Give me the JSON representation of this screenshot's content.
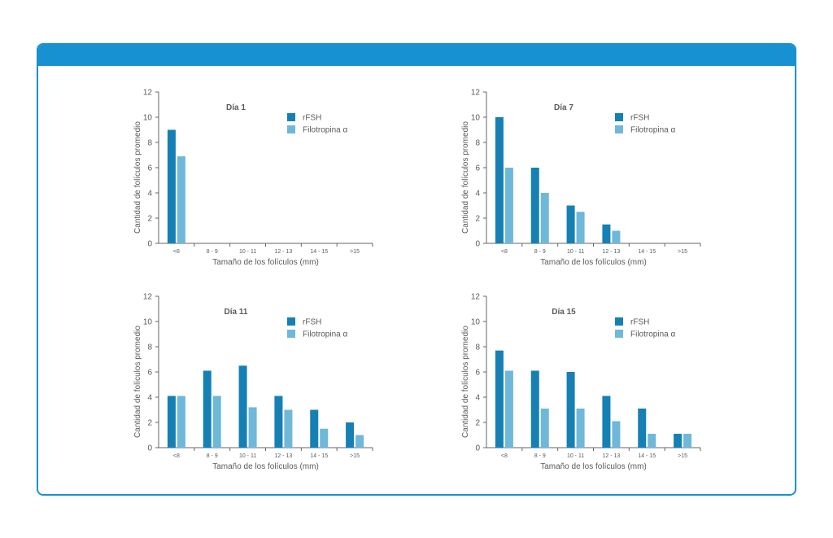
{
  "colors": {
    "accent": "#1791d1",
    "rfsh": "#1580b3",
    "filotropina": "#6fb8d9"
  },
  "chart_data": [
    {
      "type": "bar",
      "title": "Día 1",
      "categories": [
        "<8",
        "8 - 9",
        "10 - 11",
        "12 - 13",
        "14 - 15",
        ">15"
      ],
      "series": [
        {
          "name": "rFSH",
          "values": [
            9,
            0,
            0,
            0,
            0,
            0
          ]
        },
        {
          "name": "Filotropina α",
          "values": [
            6.9,
            0,
            0,
            0,
            0,
            0
          ]
        }
      ],
      "xlabel": "Tamaño de los folículos (mm)",
      "ylabel": "Cantidad de folículos promedio",
      "ylim": [
        0,
        12
      ],
      "yticks": [
        "0",
        "2",
        "4",
        "6",
        "8",
        "10",
        "12"
      ],
      "legend": "top-right",
      "grid": false
    },
    {
      "type": "bar",
      "title": "Día 7",
      "categories": [
        "<8",
        "8 - 9",
        "10 - 11",
        "12 - 13",
        "14 - 15",
        ">15"
      ],
      "series": [
        {
          "name": "rFSH",
          "values": [
            10,
            6,
            3,
            1.5,
            0,
            0
          ]
        },
        {
          "name": "Filotropina α",
          "values": [
            6,
            4,
            2.5,
            1,
            0,
            0
          ]
        }
      ],
      "xlabel": "Tamaño de los folículos (mm)",
      "ylabel": "Cantidad de folículos promedio",
      "ylim": [
        0,
        12
      ],
      "yticks": [
        "0",
        "2",
        "4",
        "6",
        "8",
        "10",
        "12"
      ],
      "legend": "top-right",
      "grid": false
    },
    {
      "type": "bar",
      "title": "Día 11",
      "categories": [
        "<8",
        "8 - 9",
        "10 - 11",
        "12 - 13",
        "14 - 15",
        ">15"
      ],
      "series": [
        {
          "name": "rFSH",
          "values": [
            4.1,
            6.1,
            6.5,
            4.1,
            3,
            2
          ]
        },
        {
          "name": "Filotropina α",
          "values": [
            4.1,
            4.1,
            3.2,
            3,
            1.5,
            1
          ]
        }
      ],
      "xlabel": "Tamaño de los folículos (mm)",
      "ylabel": "Cantidad de folículos promedio",
      "ylim": [
        0,
        12
      ],
      "yticks": [
        "0",
        "2",
        "4",
        "6",
        "8",
        "10",
        "12"
      ],
      "legend": "top-right",
      "grid": false
    },
    {
      "type": "bar",
      "title": "Día 15",
      "categories": [
        "<8",
        "8 - 9",
        "10 - 11",
        "12 - 13",
        "14 - 15",
        ">15"
      ],
      "series": [
        {
          "name": "rFSH",
          "values": [
            7.7,
            6.1,
            6,
            4.1,
            3.1,
            1.1
          ]
        },
        {
          "name": "Filotropina α",
          "values": [
            6.1,
            3.1,
            3.1,
            2.1,
            1.1,
            1.1
          ]
        }
      ],
      "xlabel": "Tamaño de los folículos (mm)",
      "ylabel": "Cantidad de folículos promedio",
      "ylim": [
        0,
        12
      ],
      "yticks": [
        "0",
        "2",
        "4",
        "6",
        "8",
        "10",
        "12"
      ],
      "legend": "top-right",
      "grid": false
    }
  ]
}
